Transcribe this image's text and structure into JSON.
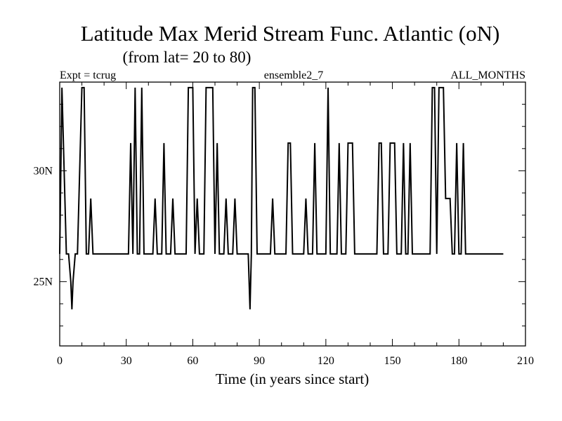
{
  "chart_data": {
    "type": "line",
    "title": "Latitude Max Merid Stream Func. Atlantic (oN)",
    "subtitle": "(from lat= 20 to 80)",
    "annotations": {
      "left": "Expt = tcrug",
      "center": "ensemble2_7",
      "right": "ALL_MONTHS"
    },
    "xlabel": "Time (in years since start)",
    "ylabel": "",
    "xlim": [
      0,
      210
    ],
    "ylim": [
      22.1,
      34.0
    ],
    "xticks": [
      0,
      30,
      60,
      90,
      120,
      150,
      180,
      210
    ],
    "xtick_labels": [
      "0",
      "30",
      "60",
      "90",
      "120",
      "150",
      "180",
      "210"
    ],
    "yticks": [
      25,
      30
    ],
    "ytick_labels": [
      "25N",
      "30N"
    ],
    "series": [
      {
        "name": "Latitude Max Merid Stream Func.",
        "points": [
          [
            0,
            26.25
          ],
          [
            1,
            33.75
          ],
          [
            2,
            30.0
          ],
          [
            3,
            26.25
          ],
          [
            4,
            26.25
          ],
          [
            5,
            25.0
          ],
          [
            5.5,
            23.75
          ],
          [
            6,
            25.0
          ],
          [
            7,
            26.25
          ],
          [
            8,
            26.25
          ],
          [
            9,
            30.0
          ],
          [
            10,
            33.75
          ],
          [
            11,
            33.75
          ],
          [
            12,
            26.25
          ],
          [
            13,
            26.25
          ],
          [
            14,
            28.75
          ],
          [
            15,
            26.25
          ],
          [
            16,
            26.25
          ],
          [
            30,
            26.25
          ],
          [
            31,
            26.25
          ],
          [
            32,
            31.25
          ],
          [
            33,
            26.25
          ],
          [
            34,
            33.75
          ],
          [
            35,
            26.25
          ],
          [
            36,
            26.25
          ],
          [
            37,
            33.75
          ],
          [
            38,
            26.25
          ],
          [
            42,
            26.25
          ],
          [
            43,
            28.75
          ],
          [
            44,
            26.25
          ],
          [
            46,
            26.25
          ],
          [
            47,
            31.25
          ],
          [
            48,
            26.25
          ],
          [
            50,
            26.25
          ],
          [
            51,
            28.75
          ],
          [
            52,
            26.25
          ],
          [
            57,
            26.25
          ],
          [
            58,
            33.75
          ],
          [
            60,
            33.75
          ],
          [
            61,
            26.25
          ],
          [
            62,
            28.75
          ],
          [
            63,
            26.25
          ],
          [
            65,
            26.25
          ],
          [
            66,
            33.75
          ],
          [
            69,
            33.75
          ],
          [
            70,
            26.25
          ],
          [
            71,
            31.25
          ],
          [
            72,
            26.25
          ],
          [
            74,
            26.25
          ],
          [
            75,
            28.75
          ],
          [
            76,
            26.25
          ],
          [
            78,
            26.25
          ],
          [
            79,
            28.75
          ],
          [
            80,
            26.25
          ],
          [
            85,
            26.25
          ],
          [
            85.8,
            23.75
          ],
          [
            86.4,
            26.25
          ],
          [
            87,
            33.75
          ],
          [
            88,
            33.75
          ],
          [
            89,
            26.25
          ],
          [
            95,
            26.25
          ],
          [
            96,
            28.75
          ],
          [
            97,
            26.25
          ],
          [
            102,
            26.25
          ],
          [
            103,
            31.25
          ],
          [
            104,
            31.25
          ],
          [
            105,
            26.25
          ],
          [
            110,
            26.25
          ],
          [
            111,
            28.75
          ],
          [
            112,
            26.25
          ],
          [
            114,
            26.25
          ],
          [
            115,
            31.25
          ],
          [
            116,
            26.25
          ],
          [
            120,
            26.25
          ],
          [
            121,
            33.75
          ],
          [
            122,
            26.25
          ],
          [
            125,
            26.25
          ],
          [
            126,
            31.25
          ],
          [
            127,
            26.25
          ],
          [
            129,
            26.25
          ],
          [
            130,
            31.25
          ],
          [
            132,
            31.25
          ],
          [
            133,
            26.25
          ],
          [
            143,
            26.25
          ],
          [
            144,
            31.25
          ],
          [
            145,
            31.25
          ],
          [
            146,
            26.25
          ],
          [
            148,
            26.25
          ],
          [
            149,
            31.25
          ],
          [
            151,
            31.25
          ],
          [
            152,
            26.25
          ],
          [
            154,
            26.25
          ],
          [
            155,
            31.25
          ],
          [
            156,
            26.25
          ],
          [
            157,
            26.25
          ],
          [
            158,
            31.25
          ],
          [
            159,
            26.25
          ],
          [
            167,
            26.25
          ],
          [
            168,
            33.75
          ],
          [
            169,
            33.75
          ],
          [
            170,
            26.25
          ],
          [
            171,
            33.75
          ],
          [
            173,
            33.75
          ],
          [
            174,
            28.75
          ],
          [
            176,
            28.75
          ],
          [
            177,
            26.25
          ],
          [
            178,
            26.25
          ],
          [
            179,
            31.25
          ],
          [
            180,
            26.25
          ],
          [
            181,
            26.25
          ],
          [
            182,
            31.25
          ],
          [
            183,
            26.25
          ],
          [
            200,
            26.25
          ]
        ]
      }
    ]
  }
}
